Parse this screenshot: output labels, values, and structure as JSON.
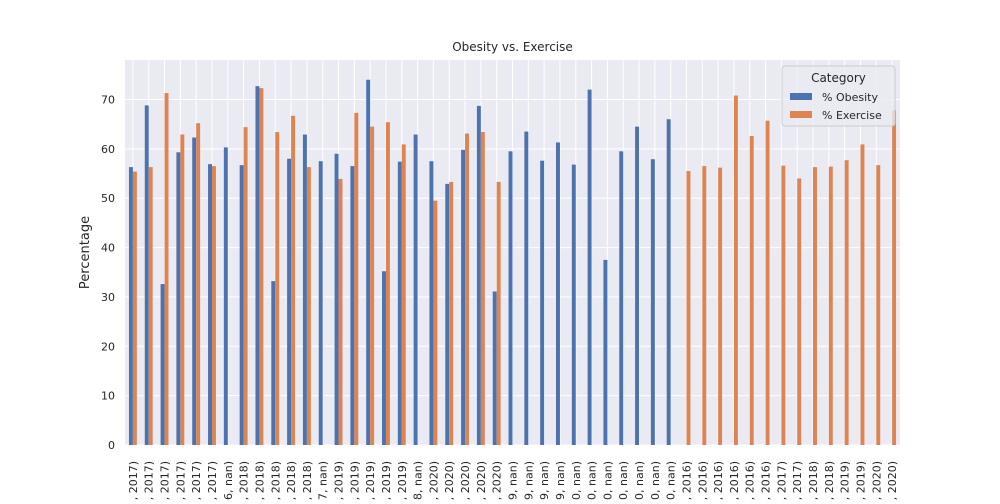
{
  "chart_data": {
    "type": "bar",
    "title": "Obesity vs. Exercise",
    "xlabel": "",
    "ylabel": "Percentage",
    "ylim": [
      0,
      78
    ],
    "yticks": [
      0,
      10,
      20,
      30,
      40,
      50,
      60,
      70
    ],
    "grid": true,
    "legend": {
      "title": "Category",
      "placement": "top-right"
    },
    "categories": [
      ", 2017)",
      ", 2017)",
      ", 2017)",
      ", 2017)",
      ", 2017)",
      ", 2017)",
      "6, nan)",
      ", 2018)",
      ", 2018)",
      ", 2018)",
      ", 2018)",
      ", 2018)",
      "7, nan)",
      ", 2019)",
      ", 2019)",
      ", 2019)",
      ", 2019)",
      ", 2019)",
      "8, nan)",
      ", 2020)",
      ", 2020)",
      ", 2020)",
      ", 2020)",
      ", 2020)",
      "9, nan)",
      "9, nan)",
      "9, nan)",
      "9, nan)",
      "0, nan)",
      "0, nan)",
      "0, nan)",
      "0, nan)",
      "0, nan)",
      "0, nan)",
      "0, nan)",
      ", 2016)",
      ", 2016)",
      ", 2016)",
      ", 2016)",
      ", 2016)",
      ", 2016)",
      ", 2017)",
      ", 2017)",
      ", 2018)",
      ", 2018)",
      ", 2019)",
      ", 2019)",
      ", 2020)",
      ", 2020)"
    ],
    "series": [
      {
        "name": "% Obesity",
        "color": "#4c72b0",
        "values": [
          56.3,
          68.8,
          32.6,
          59.3,
          62.3,
          56.9,
          60.3,
          56.7,
          72.7,
          33.2,
          58.0,
          62.9,
          57.5,
          59.0,
          56.5,
          74.0,
          35.2,
          57.4,
          62.9,
          57.5,
          52.9,
          59.8,
          68.7,
          31.1,
          59.5,
          63.5,
          57.6,
          61.3,
          56.8,
          72.0,
          37.5,
          59.5,
          64.5,
          57.9,
          66.0,
          null,
          null,
          null,
          null,
          null,
          null,
          null,
          null,
          null,
          null,
          null,
          null,
          null,
          null
        ]
      },
      {
        "name": "% Exercise",
        "color": "#dd8452",
        "values": [
          55.4,
          56.3,
          71.3,
          62.9,
          65.2,
          56.5,
          null,
          64.4,
          72.3,
          63.4,
          66.7,
          56.3,
          null,
          53.9,
          67.3,
          64.5,
          65.4,
          60.9,
          null,
          49.5,
          53.3,
          63.1,
          63.4,
          53.3,
          null,
          null,
          null,
          null,
          null,
          null,
          null,
          null,
          null,
          null,
          null,
          55.5,
          56.5,
          56.2,
          70.8,
          62.6,
          65.7,
          56.6,
          54.0,
          56.3,
          56.4,
          57.7,
          60.9,
          56.7,
          67.8
        ]
      }
    ]
  }
}
